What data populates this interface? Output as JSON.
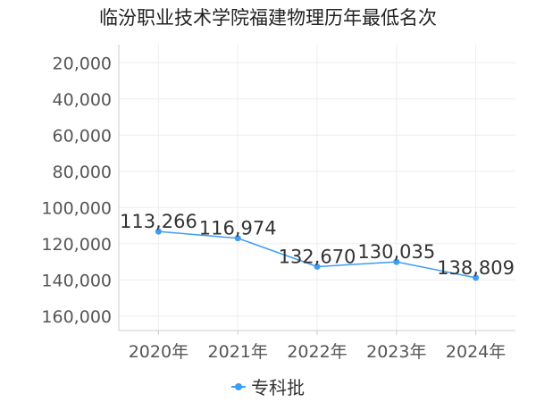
{
  "chart_data": {
    "type": "line",
    "title": "临汾职业技术学院福建物理历年最低名次",
    "categories": [
      "2020年",
      "2021年",
      "2022年",
      "2023年",
      "2024年"
    ],
    "series": [
      {
        "name": "专科批",
        "values": [
          113266,
          116974,
          132670,
          130035,
          138809
        ],
        "labels": [
          "113,266",
          "116,974",
          "132,670",
          "130,035",
          "138,809"
        ]
      }
    ],
    "y_ticks": [
      20000,
      40000,
      60000,
      80000,
      100000,
      120000,
      140000,
      160000
    ],
    "y_tick_labels": [
      "20,000",
      "40,000",
      "60,000",
      "80,000",
      "100,000",
      "120,000",
      "140,000",
      "160,000"
    ],
    "ylim": [
      10000,
      168000
    ],
    "y_inverted": true,
    "grid": true,
    "legend_position": "bottom",
    "colors": {
      "series": "#3d9cf5",
      "grid": "#eeeeee",
      "axis": "#cccccc"
    }
  }
}
